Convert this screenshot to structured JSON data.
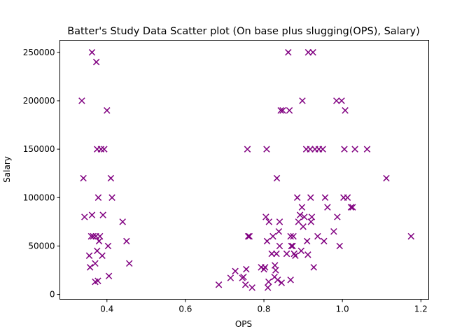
{
  "chart_data": {
    "type": "scatter",
    "title": "Batter's Study Data Scatter plot (On base plus slugging(OPS), Salary)",
    "xlabel": "OPS",
    "ylabel": "Salary",
    "xlim": [
      0.28,
      1.22
    ],
    "ylim": [
      -5000,
      262500
    ],
    "xticks": [
      0.4,
      0.6,
      0.8,
      1.0,
      1.2
    ],
    "xtick_labels": [
      "0.4",
      "0.6",
      "0.8",
      "1.0",
      "1.2"
    ],
    "yticks": [
      0,
      50000,
      100000,
      150000,
      200000,
      250000
    ],
    "ytick_labels": [
      "0",
      "50000",
      "100000",
      "150000",
      "200000",
      "250000"
    ],
    "marker": "x",
    "grid": false,
    "series": [
      {
        "color": "#800080",
        "points": [
          [
            0.336,
            200000
          ],
          [
            0.34,
            120000
          ],
          [
            0.343,
            80000
          ],
          [
            0.355,
            40000
          ],
          [
            0.357,
            28000
          ],
          [
            0.36,
            60000
          ],
          [
            0.362,
            82000
          ],
          [
            0.362,
            250000
          ],
          [
            0.365,
            60000
          ],
          [
            0.37,
            13000
          ],
          [
            0.37,
            32000
          ],
          [
            0.372,
            60000
          ],
          [
            0.373,
            240000
          ],
          [
            0.375,
            150000
          ],
          [
            0.375,
            45000
          ],
          [
            0.377,
            14000
          ],
          [
            0.378,
            100000
          ],
          [
            0.38,
            55000
          ],
          [
            0.382,
            60000
          ],
          [
            0.385,
            150000
          ],
          [
            0.388,
            40000
          ],
          [
            0.39,
            82000
          ],
          [
            0.393,
            150000
          ],
          [
            0.4,
            190000
          ],
          [
            0.403,
            50000
          ],
          [
            0.405,
            19000
          ],
          [
            0.41,
            120000
          ],
          [
            0.413,
            100000
          ],
          [
            0.44,
            75000
          ],
          [
            0.45,
            55000
          ],
          [
            0.457,
            32000
          ],
          [
            0.685,
            10000
          ],
          [
            0.715,
            17000
          ],
          [
            0.727,
            24000
          ],
          [
            0.745,
            17000
          ],
          [
            0.748,
            18000
          ],
          [
            0.753,
            10000
          ],
          [
            0.755,
            26000
          ],
          [
            0.758,
            150000
          ],
          [
            0.76,
            60000
          ],
          [
            0.763,
            60000
          ],
          [
            0.77,
            7000
          ],
          [
            0.793,
            28000
          ],
          [
            0.8,
            26000
          ],
          [
            0.803,
            28000
          ],
          [
            0.805,
            80000
          ],
          [
            0.807,
            150000
          ],
          [
            0.808,
            55000
          ],
          [
            0.81,
            7000
          ],
          [
            0.812,
            13000
          ],
          [
            0.813,
            75000
          ],
          [
            0.82,
            42000
          ],
          [
            0.823,
            60000
          ],
          [
            0.827,
            18000
          ],
          [
            0.828,
            30000
          ],
          [
            0.83,
            25000
          ],
          [
            0.832,
            42000
          ],
          [
            0.833,
            120000
          ],
          [
            0.835,
            15000
          ],
          [
            0.838,
            65000
          ],
          [
            0.84,
            50000
          ],
          [
            0.84,
            75000
          ],
          [
            0.843,
            190000
          ],
          [
            0.845,
            12000
          ],
          [
            0.848,
            190000
          ],
          [
            0.858,
            42000
          ],
          [
            0.862,
            250000
          ],
          [
            0.865,
            190000
          ],
          [
            0.868,
            15000
          ],
          [
            0.868,
            60000
          ],
          [
            0.87,
            50000
          ],
          [
            0.873,
            50000
          ],
          [
            0.875,
            60000
          ],
          [
            0.877,
            42000
          ],
          [
            0.88,
            40000
          ],
          [
            0.885,
            100000
          ],
          [
            0.888,
            75000
          ],
          [
            0.892,
            82000
          ],
          [
            0.895,
            45000
          ],
          [
            0.897,
            90000
          ],
          [
            0.898,
            200000
          ],
          [
            0.9,
            70000
          ],
          [
            0.903,
            80000
          ],
          [
            0.908,
            150000
          ],
          [
            0.91,
            55000
          ],
          [
            0.912,
            41000
          ],
          [
            0.913,
            250000
          ],
          [
            0.918,
            150000
          ],
          [
            0.919,
            100000
          ],
          [
            0.92,
            75000
          ],
          [
            0.922,
            80000
          ],
          [
            0.925,
            250000
          ],
          [
            0.927,
            28000
          ],
          [
            0.93,
            150000
          ],
          [
            0.937,
            60000
          ],
          [
            0.94,
            150000
          ],
          [
            0.95,
            150000
          ],
          [
            0.953,
            55000
          ],
          [
            0.956,
            100000
          ],
          [
            0.962,
            90000
          ],
          [
            0.978,
            65000
          ],
          [
            0.985,
            200000
          ],
          [
            0.987,
            80000
          ],
          [
            0.993,
            50000
          ],
          [
            0.998,
            200000
          ],
          [
            1.003,
            100000
          ],
          [
            1.005,
            150000
          ],
          [
            1.007,
            190000
          ],
          [
            1.013,
            100000
          ],
          [
            1.022,
            90000
          ],
          [
            1.026,
            90000
          ],
          [
            1.032,
            150000
          ],
          [
            1.063,
            150000
          ],
          [
            1.112,
            120000
          ],
          [
            1.175,
            60000
          ]
        ]
      }
    ]
  }
}
